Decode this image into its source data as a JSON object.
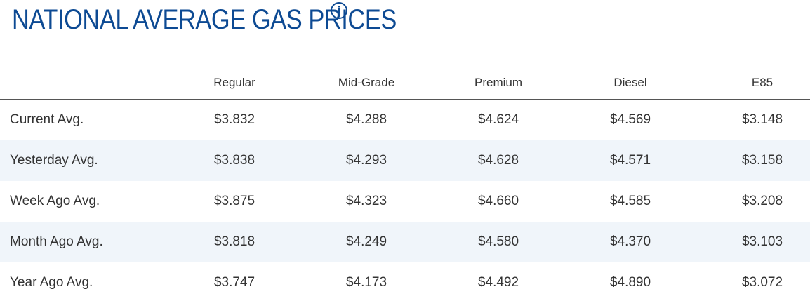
{
  "header": {
    "title": "NATIONAL AVERAGE GAS PRICES",
    "info_icon": "info-icon"
  },
  "table": {
    "columns": [
      "",
      "Regular",
      "Mid-Grade",
      "Premium",
      "Diesel",
      "E85"
    ],
    "rows": [
      {
        "label": "Current Avg.",
        "values": [
          "$3.832",
          "$4.288",
          "$4.624",
          "$4.569",
          "$3.148"
        ]
      },
      {
        "label": "Yesterday Avg.",
        "values": [
          "$3.838",
          "$4.293",
          "$4.628",
          "$4.571",
          "$3.158"
        ]
      },
      {
        "label": "Week Ago Avg.",
        "values": [
          "$3.875",
          "$4.323",
          "$4.660",
          "$4.585",
          "$3.208"
        ]
      },
      {
        "label": "Month Ago Avg.",
        "values": [
          "$3.818",
          "$4.249",
          "$4.580",
          "$4.370",
          "$3.103"
        ]
      },
      {
        "label": "Year Ago Avg.",
        "values": [
          "$3.747",
          "$4.173",
          "$4.492",
          "$4.890",
          "$3.072"
        ]
      }
    ]
  },
  "colors": {
    "title": "#0d4a93",
    "stripe": "#f0f5fa",
    "text": "#333333"
  }
}
